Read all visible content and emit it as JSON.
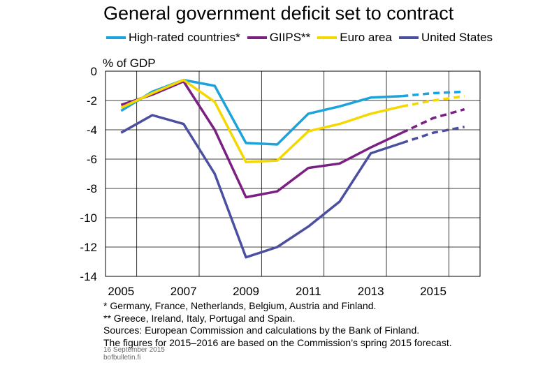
{
  "title": "General government deficit set to contract",
  "legend": [
    {
      "label": "High-rated countries*",
      "color": "#1ba3dc"
    },
    {
      "label": "GIIPS**",
      "color": "#7b2082"
    },
    {
      "label": "Euro area",
      "color": "#f5d800"
    },
    {
      "label": "United States",
      "color": "#4b4fa0"
    }
  ],
  "notes": [
    "* Germany, France, Netherlands, Belgium, Austria and Finland.",
    "** Greece, Ireland, Italy, Portugal and Spain.",
    "Sources: European Commission and calculations by the Bank of Finland.",
    "The figures for 2015–2016 are based on the Commission’s spring 2015 forecast."
  ],
  "stamp": {
    "date": "16 September 2015",
    "site": "bofbulletin.fi"
  },
  "chart_data": {
    "type": "line",
    "title": "General government deficit set to contract",
    "ylabel": "% of GDP",
    "xlabel": "",
    "x": [
      2005,
      2006,
      2007,
      2008,
      2009,
      2010,
      2011,
      2012,
      2013,
      2014,
      2015,
      2016
    ],
    "x_tick_labels": [
      "2005",
      "2007",
      "2009",
      "2011",
      "2013",
      "2015"
    ],
    "ylim": [
      -14,
      0
    ],
    "yticks": [
      0,
      -2,
      -4,
      -6,
      -8,
      -10,
      -12,
      -14
    ],
    "grid": true,
    "forecast_from": 2014,
    "series": [
      {
        "name": "High-rated countries*",
        "color": "#1ba3dc",
        "values": [
          -2.7,
          -1.4,
          -0.6,
          -1.0,
          -4.9,
          -5.0,
          -2.9,
          -2.4,
          -1.8,
          -1.7,
          -1.5,
          -1.4
        ]
      },
      {
        "name": "GIIPS**",
        "color": "#7b2082",
        "values": [
          -2.3,
          -1.6,
          -0.7,
          -4.0,
          -8.6,
          -8.2,
          -6.6,
          -6.3,
          -5.2,
          -4.2,
          -3.2,
          -2.6
        ]
      },
      {
        "name": "Euro area",
        "color": "#f5d800",
        "values": [
          -2.5,
          -1.5,
          -0.6,
          -2.1,
          -6.2,
          -6.1,
          -4.1,
          -3.6,
          -2.9,
          -2.4,
          -2.0,
          -1.7
        ]
      },
      {
        "name": "United States",
        "color": "#4b4fa0",
        "values": [
          -4.2,
          -3.0,
          -3.6,
          -7.0,
          -12.7,
          -12.0,
          -10.6,
          -8.9,
          -5.6,
          -4.9,
          -4.2,
          -3.8
        ]
      }
    ]
  }
}
